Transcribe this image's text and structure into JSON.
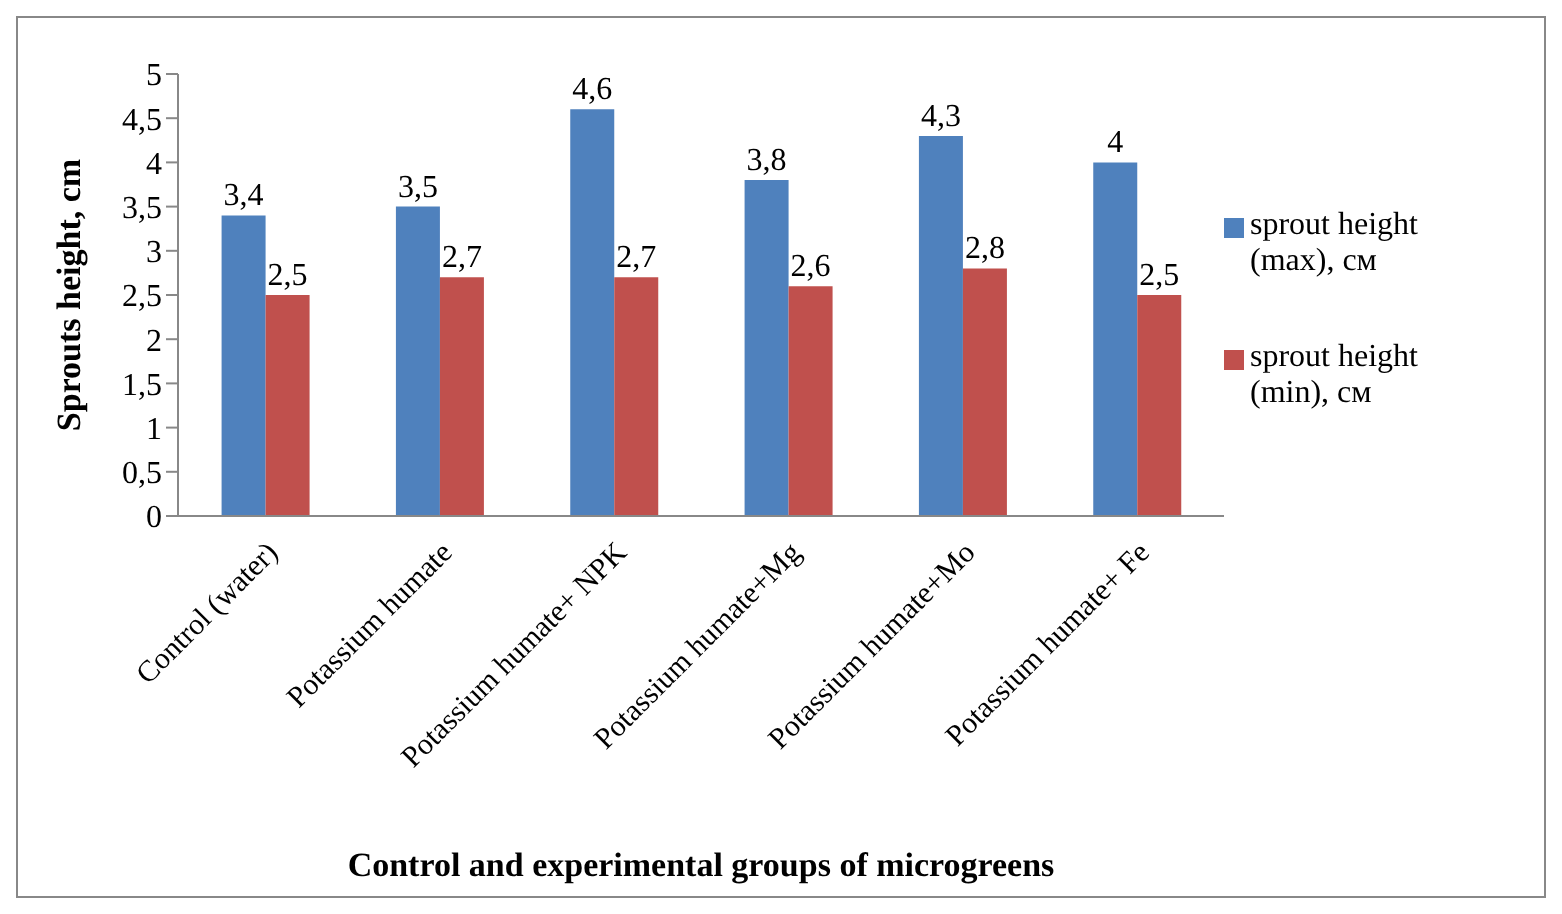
{
  "chart_data": {
    "type": "bar",
    "xlabel": "Control and experimental groups of microgreens",
    "ylabel": "Sprouts height, cm",
    "categories": [
      "Control (water)",
      "Potassium humate",
      "Potassium humate+ NPK",
      "Potassium humate+Mg",
      "Potassium humate+Mo",
      "Potassium humate+ Fe"
    ],
    "series": [
      {
        "name": "sprout height (max), см",
        "color": "#4f81bd",
        "values": [
          3.4,
          3.5,
          4.6,
          3.8,
          4.3,
          4
        ],
        "value_labels": [
          "3,4",
          "3,5",
          "4,6",
          "3,8",
          "4,3",
          "4"
        ]
      },
      {
        "name": "sprout height (min), см",
        "color": "#c0504d",
        "values": [
          2.5,
          2.7,
          2.7,
          2.6,
          2.8,
          2.5
        ],
        "value_labels": [
          "2,5",
          "2,7",
          "2,7",
          "2,6",
          "2,8",
          "2,5"
        ]
      }
    ],
    "ylim": [
      0,
      5
    ],
    "yticks": [
      0,
      {
        "value": 0.5,
        "label": "0,5"
      },
      1,
      {
        "value": 1.5,
        "label": "1,5"
      },
      2,
      {
        "value": 2.5,
        "label": "2,5"
      },
      3,
      {
        "value": 3.5,
        "label": "3,5"
      },
      4,
      {
        "value": 4.5,
        "label": "4,5"
      },
      5
    ],
    "grid": false,
    "legend": "right"
  }
}
